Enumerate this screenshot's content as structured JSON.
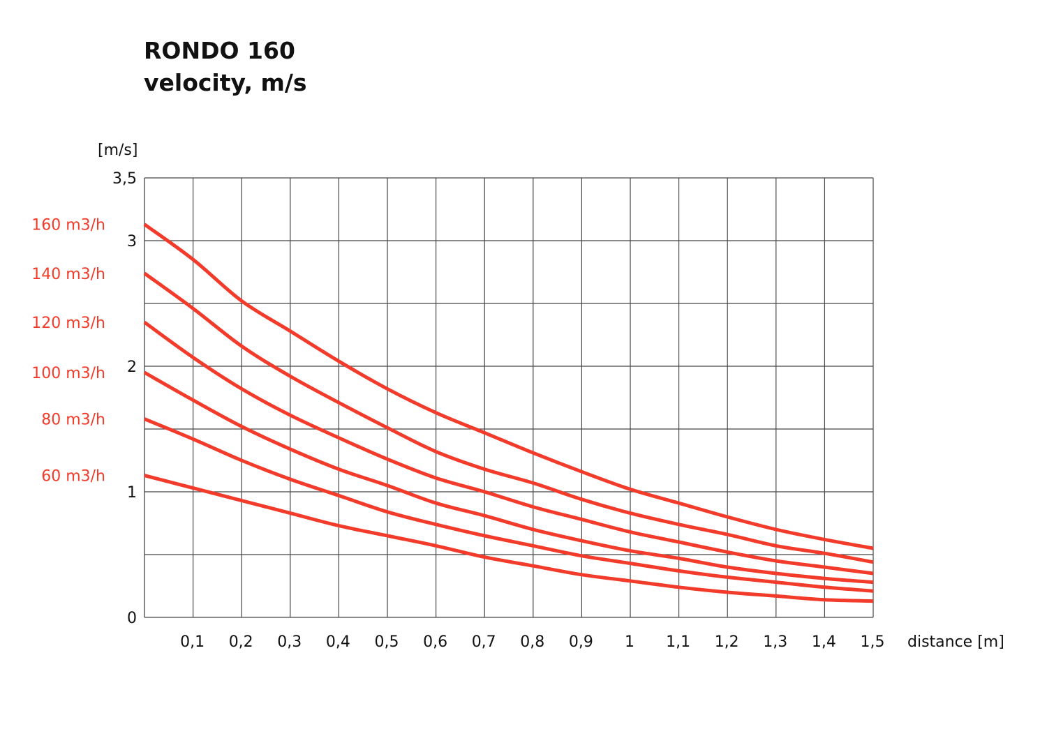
{
  "chart_data": {
    "type": "line",
    "title": "RONDO 160",
    "subtitle": "velocity, m/s",
    "xlabel": "distance [m]",
    "ylabel": "[m/s]",
    "xlim": [
      0,
      1.5
    ],
    "ylim": [
      0,
      3.5
    ],
    "grid": true,
    "x_gridlines": [
      0.1,
      0.2,
      0.3,
      0.4,
      0.5,
      0.6,
      0.7,
      0.8,
      0.9,
      1.0,
      1.1,
      1.2,
      1.3,
      1.4,
      1.5
    ],
    "y_gridlines": [
      0.5,
      1,
      1.5,
      2,
      2.5,
      3,
      3.5
    ],
    "x_ticks": [
      {
        "value": 0.1,
        "label": "0,1"
      },
      {
        "value": 0.2,
        "label": "0,2"
      },
      {
        "value": 0.3,
        "label": "0,3"
      },
      {
        "value": 0.4,
        "label": "0,4"
      },
      {
        "value": 0.5,
        "label": "0,5"
      },
      {
        "value": 0.6,
        "label": "0,6"
      },
      {
        "value": 0.7,
        "label": "0,7"
      },
      {
        "value": 0.8,
        "label": "0,8"
      },
      {
        "value": 0.9,
        "label": "0,9"
      },
      {
        "value": 1.0,
        "label": "1"
      },
      {
        "value": 1.1,
        "label": "1,1"
      },
      {
        "value": 1.2,
        "label": "1,2"
      },
      {
        "value": 1.3,
        "label": "1,3"
      },
      {
        "value": 1.4,
        "label": "1,4"
      },
      {
        "value": 1.5,
        "label": "1,5"
      }
    ],
    "y_ticks": [
      {
        "value": 0,
        "label": "0"
      },
      {
        "value": 1,
        "label": "1"
      },
      {
        "value": 2,
        "label": "2"
      },
      {
        "value": 3,
        "label": "3"
      },
      {
        "value": 3.5,
        "label": "3,5"
      }
    ],
    "series_color": "#f23b2a",
    "legend_placement": "left of y-axis, beside each curve start",
    "x": [
      0,
      0.1,
      0.2,
      0.3,
      0.4,
      0.5,
      0.6,
      0.7,
      0.8,
      0.9,
      1.0,
      1.1,
      1.2,
      1.3,
      1.4,
      1.5
    ],
    "series": [
      {
        "name": "160 m3/h",
        "values": [
          3.13,
          2.85,
          2.52,
          2.28,
          2.04,
          1.82,
          1.63,
          1.47,
          1.31,
          1.16,
          1.02,
          0.91,
          0.8,
          0.7,
          0.62,
          0.55
        ]
      },
      {
        "name": "140 m3/h",
        "values": [
          2.74,
          2.46,
          2.16,
          1.92,
          1.71,
          1.51,
          1.32,
          1.18,
          1.07,
          0.94,
          0.83,
          0.74,
          0.66,
          0.57,
          0.51,
          0.44
        ]
      },
      {
        "name": "120 m3/h",
        "values": [
          2.35,
          2.07,
          1.82,
          1.61,
          1.43,
          1.26,
          1.11,
          1.0,
          0.88,
          0.78,
          0.68,
          0.6,
          0.52,
          0.45,
          0.4,
          0.35
        ]
      },
      {
        "name": "100 m3/h",
        "values": [
          1.95,
          1.73,
          1.52,
          1.34,
          1.18,
          1.05,
          0.91,
          0.81,
          0.7,
          0.61,
          0.53,
          0.47,
          0.4,
          0.35,
          0.31,
          0.28
        ]
      },
      {
        "name": "80 m3/h",
        "values": [
          1.58,
          1.42,
          1.25,
          1.1,
          0.97,
          0.84,
          0.74,
          0.65,
          0.57,
          0.49,
          0.43,
          0.37,
          0.32,
          0.28,
          0.24,
          0.21
        ]
      },
      {
        "name": "60 m3/h",
        "values": [
          1.13,
          1.03,
          0.93,
          0.83,
          0.73,
          0.65,
          0.57,
          0.48,
          0.41,
          0.34,
          0.29,
          0.24,
          0.2,
          0.17,
          0.14,
          0.13
        ]
      }
    ]
  }
}
